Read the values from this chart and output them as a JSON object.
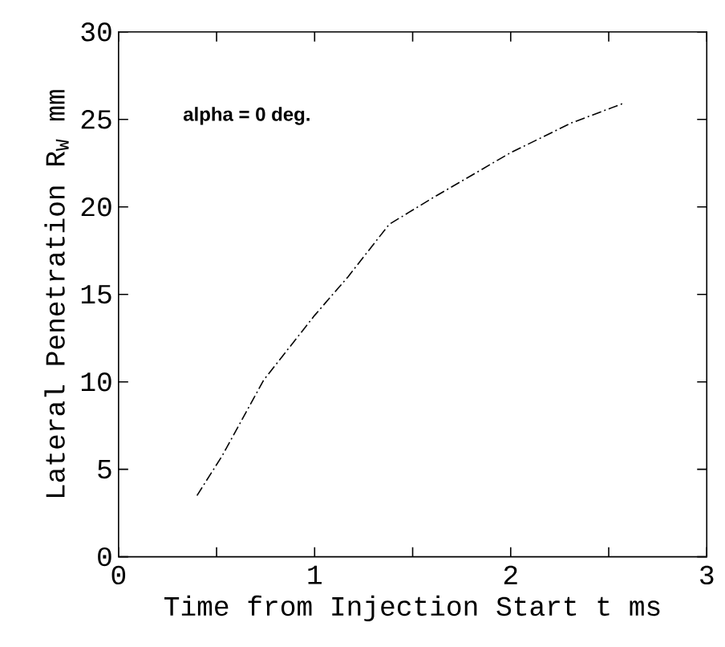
{
  "chart_data": {
    "type": "line",
    "xlabel": "Time from Injection Start   t  ms",
    "ylabel": "Lateral Penetration  R$_{W}$  mm",
    "annotations": [
      "alpha = 0 deg."
    ],
    "x": [
      0.4,
      0.53,
      0.74,
      1.0,
      1.17,
      1.38,
      1.6,
      2.0,
      2.31,
      2.57
    ],
    "series": [
      {
        "color": "#000000",
        "values": [
          3.5,
          5.8,
          10.1,
          13.8,
          16.0,
          19.0,
          20.5,
          23.1,
          24.8,
          25.9
        ]
      }
    ],
    "xlim": [
      0,
      3
    ],
    "ylim": [
      0,
      30
    ],
    "xticks": [
      0,
      {
        "value": 0.5,
        "label": null
      },
      1,
      {
        "value": 1.5,
        "label": null
      },
      2,
      {
        "value": 2.5,
        "label": null
      },
      3
    ],
    "yticks": [
      0,
      5,
      10,
      15,
      20,
      25,
      30
    ],
    "grid": false,
    "marker": "none",
    "line_style": "dashed"
  }
}
